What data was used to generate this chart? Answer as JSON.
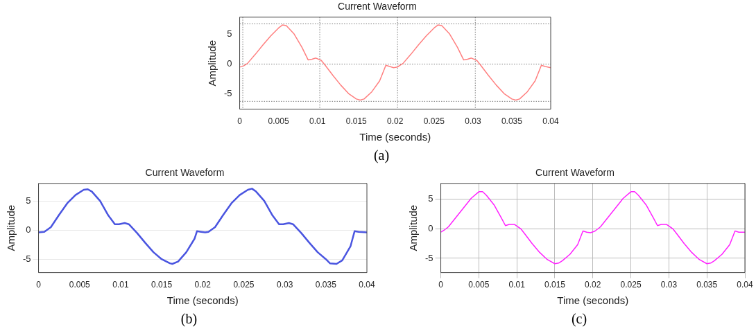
{
  "chart_data": [
    {
      "type": "line",
      "title": "Current Waveform",
      "xlabel": "Time (seconds)",
      "ylabel": "Amplitude",
      "annotations": [
        "(a)"
      ],
      "xlim": [
        0,
        0.04
      ],
      "xticks": [
        0,
        0.005,
        0.01,
        0.015,
        0.02,
        0.025,
        0.03,
        0.035,
        0.04
      ],
      "ylim": [
        -7.5,
        7.8
      ],
      "yticks": [
        -5,
        0,
        5
      ],
      "grid": false,
      "legend": false,
      "ref_lines": [
        {
          "axis": "y",
          "value": 6.7,
          "line_style": "dotted"
        },
        {
          "axis": "y",
          "value": 0,
          "line_style": "dotted"
        },
        {
          "axis": "y",
          "value": -6.2,
          "line_style": "dotted"
        },
        {
          "axis": "x",
          "value": 0.0004,
          "line_style": "dotted"
        },
        {
          "axis": "x",
          "value": 0.0103,
          "line_style": "dotted"
        },
        {
          "axis": "x",
          "value": 0.0203,
          "line_style": "dotted"
        },
        {
          "axis": "x",
          "value": 0.0303,
          "line_style": "dotted"
        }
      ],
      "series": [
        {
          "color": "#ff8080",
          "x": [
            0,
            0.0005,
            0.001,
            0.002,
            0.003,
            0.004,
            0.005,
            0.0055,
            0.006,
            0.007,
            0.008,
            0.0088,
            0.0093,
            0.0098,
            0.0105,
            0.011,
            0.012,
            0.013,
            0.014,
            0.015,
            0.0155,
            0.016,
            0.017,
            0.018,
            0.0188,
            0.0193,
            0.0198,
            0.0203,
            0.0205,
            0.021,
            0.022,
            0.023,
            0.024,
            0.025,
            0.0255,
            0.026,
            0.027,
            0.028,
            0.0288,
            0.0293,
            0.0298,
            0.0305,
            0.031,
            0.032,
            0.033,
            0.034,
            0.035,
            0.0355,
            0.036,
            0.037,
            0.038,
            0.0388,
            0.0393,
            0.04
          ],
          "values": [
            -0.5,
            -0.3,
            0.1,
            1.6,
            3.2,
            4.7,
            6.0,
            6.5,
            6.4,
            5.0,
            2.8,
            0.7,
            0.8,
            1.0,
            0.6,
            -0.2,
            -1.9,
            -3.5,
            -4.9,
            -5.8,
            -6.0,
            -5.8,
            -4.6,
            -2.8,
            -0.2,
            -0.4,
            -0.6,
            -0.5,
            -0.3,
            0.1,
            1.6,
            3.2,
            4.7,
            6.0,
            6.5,
            6.4,
            5.0,
            2.8,
            0.7,
            0.8,
            1.0,
            0.6,
            -0.2,
            -1.9,
            -3.5,
            -4.9,
            -5.8,
            -6.0,
            -5.8,
            -4.6,
            -2.8,
            -0.2,
            -0.4,
            -0.6
          ]
        }
      ]
    },
    {
      "type": "line",
      "title": "Current Waveform",
      "xlabel": "Time (seconds)",
      "ylabel": "Amplitude",
      "annotations": [
        "(b)"
      ],
      "xlim": [
        0,
        0.04
      ],
      "xticks": [
        0,
        0.005,
        0.01,
        0.015,
        0.02,
        0.025,
        0.03,
        0.035,
        0.04
      ],
      "ylim": [
        -7.3,
        8
      ],
      "yticks": [
        -5,
        0,
        5
      ],
      "grid": "y",
      "legend": false,
      "series": [
        {
          "color": "#4a55e0",
          "x": [
            0,
            0.0007,
            0.0015,
            0.0025,
            0.0035,
            0.0045,
            0.0055,
            0.006,
            0.0065,
            0.0075,
            0.0085,
            0.0093,
            0.0098,
            0.0105,
            0.011,
            0.012,
            0.013,
            0.014,
            0.015,
            0.016,
            0.0163,
            0.017,
            0.018,
            0.019,
            0.0193,
            0.0198,
            0.0203,
            0.0207,
            0.0215,
            0.0225,
            0.0235,
            0.0245,
            0.0255,
            0.026,
            0.0265,
            0.0275,
            0.0285,
            0.0293,
            0.0298,
            0.0305,
            0.031,
            0.032,
            0.033,
            0.034,
            0.035,
            0.0355,
            0.0363,
            0.037,
            0.038,
            0.0385,
            0.039,
            0.04
          ],
          "values": [
            -0.4,
            -0.3,
            0.5,
            2.6,
            4.6,
            6.0,
            6.9,
            7.0,
            6.6,
            5.0,
            2.5,
            1.0,
            1.0,
            1.2,
            1.0,
            -0.5,
            -2.2,
            -3.8,
            -5.0,
            -5.7,
            -5.8,
            -5.4,
            -3.8,
            -1.5,
            -0.2,
            -0.3,
            -0.4,
            -0.3,
            0.5,
            2.6,
            4.6,
            6.0,
            6.9,
            7.1,
            6.6,
            5.0,
            2.5,
            1.0,
            1.0,
            1.2,
            1.0,
            -0.5,
            -2.2,
            -3.8,
            -5.0,
            -5.7,
            -5.8,
            -5.2,
            -2.8,
            -0.2,
            -0.3,
            -0.4
          ]
        }
      ]
    },
    {
      "type": "line",
      "title": "Current Waveform",
      "xlabel": "Time (seconds)",
      "ylabel": "Amplitude",
      "annotations": [
        "(c)"
      ],
      "xlim": [
        0,
        0.04
      ],
      "xticks": [
        0,
        0.005,
        0.01,
        0.015,
        0.02,
        0.025,
        0.03,
        0.035,
        0.04
      ],
      "ylim": [
        -7.4,
        7.6
      ],
      "yticks": [
        -5,
        0,
        5
      ],
      "grid": true,
      "legend": false,
      "series": [
        {
          "color": "#ff22ff",
          "x": [
            0,
            0.0005,
            0.001,
            0.002,
            0.003,
            0.004,
            0.005,
            0.0055,
            0.006,
            0.007,
            0.008,
            0.0085,
            0.009,
            0.0097,
            0.0105,
            0.011,
            0.012,
            0.013,
            0.014,
            0.015,
            0.0155,
            0.016,
            0.017,
            0.018,
            0.0187,
            0.0192,
            0.0197,
            0.0203,
            0.0205,
            0.021,
            0.022,
            0.023,
            0.024,
            0.025,
            0.0255,
            0.026,
            0.027,
            0.028,
            0.0285,
            0.029,
            0.0297,
            0.0305,
            0.031,
            0.032,
            0.033,
            0.034,
            0.035,
            0.0355,
            0.036,
            0.037,
            0.038,
            0.0387,
            0.0392,
            0.04
          ],
          "values": [
            -0.6,
            -0.2,
            0.3,
            1.9,
            3.5,
            5.1,
            6.2,
            6.2,
            5.6,
            4.0,
            1.7,
            0.5,
            0.7,
            0.7,
            0,
            -0.8,
            -2.5,
            -4.0,
            -5.2,
            -5.9,
            -5.8,
            -5.4,
            -4.3,
            -2.7,
            -0.4,
            -0.6,
            -0.7,
            -0.4,
            -0.2,
            0.3,
            1.9,
            3.5,
            5.1,
            6.2,
            6.2,
            5.6,
            4.0,
            1.7,
            0.5,
            0.7,
            0.7,
            0,
            -0.8,
            -2.5,
            -4.0,
            -5.2,
            -5.9,
            -5.8,
            -5.4,
            -4.3,
            -2.7,
            -0.4,
            -0.6,
            -0.6
          ]
        }
      ]
    }
  ]
}
